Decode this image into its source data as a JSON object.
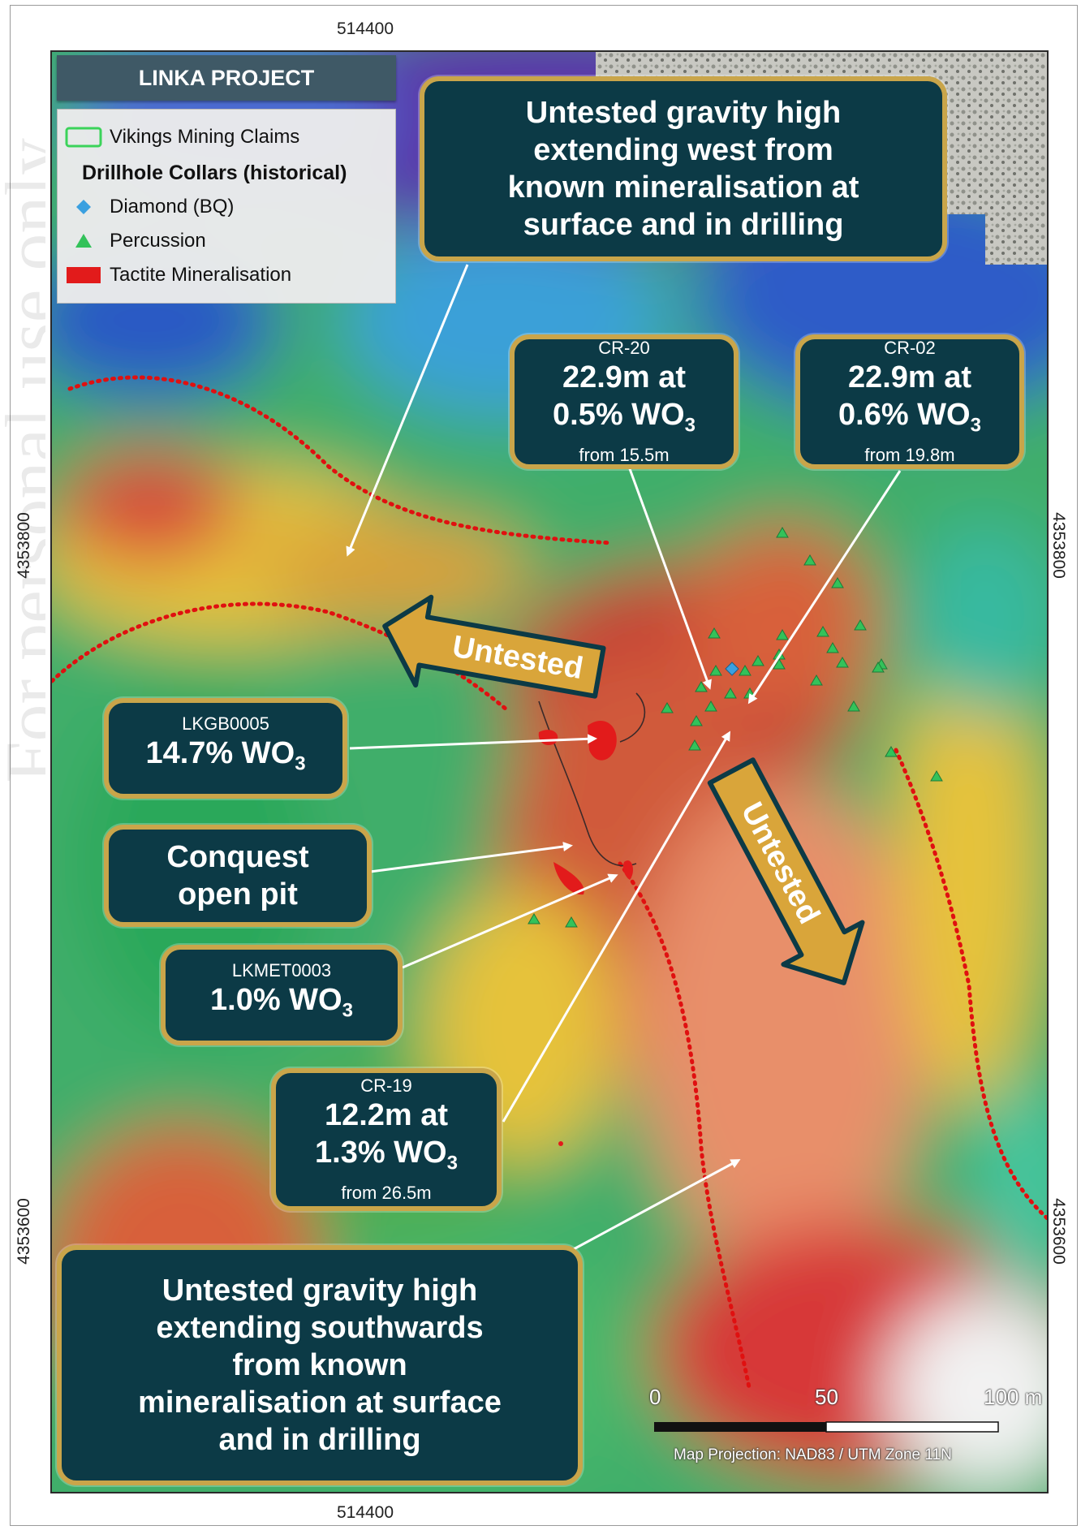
{
  "coords": {
    "top": "514400",
    "bottom": "514400",
    "left_upper": "4353800",
    "left_lower": "4353600",
    "right_upper": "4353800",
    "right_lower": "4353600"
  },
  "legend": {
    "title": "LINKA PROJECT",
    "claims_label": "Vikings Mining Claims",
    "collars_heading": "Drillhole Collars (historical)",
    "diamond_label": "Diamond (BQ)",
    "percussion_label": "Percussion",
    "tactite_label": "Tactite Mineralisation",
    "colors": {
      "claims": "#3bd35a",
      "diamond": "#3aa0e0",
      "percussion": "#33c25a",
      "tactite": "#e21b1b"
    }
  },
  "callouts": {
    "west_high": [
      "Untested gravity high",
      "extending west from",
      "known mineralisation at",
      "surface and in drilling"
    ],
    "cr20": {
      "hole": "CR-20",
      "line1": "22.9m at",
      "grade": "0.5% WO",
      "sub": "3",
      "from": "from 15.5m"
    },
    "cr02": {
      "hole": "CR-02",
      "line1": "22.9m at",
      "grade": "0.6% WO",
      "sub": "3",
      "from": "from 19.8m"
    },
    "lkgb": {
      "hole": "LKGB0005",
      "grade": "14.7% WO",
      "sub": "3"
    },
    "conquest": [
      "Conquest",
      "open pit"
    ],
    "lkmet": {
      "hole": "LKMET0003",
      "grade": "1.0% WO",
      "sub": "3"
    },
    "cr19": {
      "hole": "CR-19",
      "line1": "12.2m at",
      "grade": "1.3% WO",
      "sub": "3",
      "from": "from 26.5m"
    },
    "south_high": [
      "Untested gravity high",
      "extending southwards",
      "from known",
      "mineralisation at surface",
      "and in drilling"
    ]
  },
  "arrow_labels": {
    "west": "Untested",
    "south": "Untested"
  },
  "scale_bar": {
    "label_0": "0",
    "label_50": "50",
    "label_100": "100 m"
  },
  "projection": "Map Projection: NAD83 / UTM Zone 11N",
  "watermark": "For personal use only"
}
